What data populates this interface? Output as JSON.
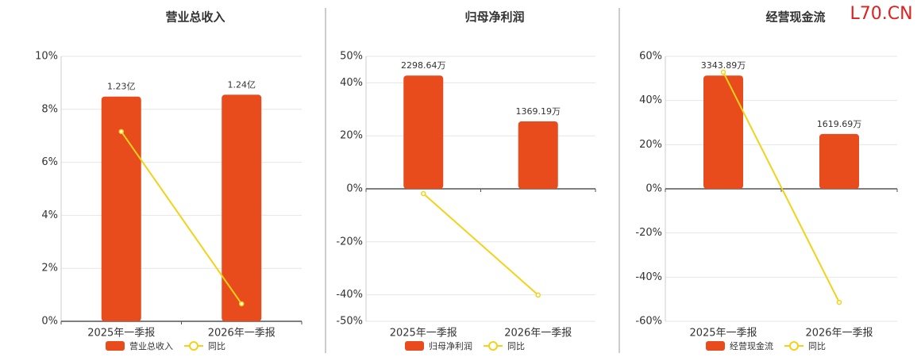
{
  "watermark": "L70.CN",
  "chart_data": [
    {
      "type": "bar",
      "title": "营业总收入",
      "categories": [
        "2025年一季报",
        "2026年一季报"
      ],
      "series": [
        {
          "name": "营业总收入",
          "type": "bar",
          "color": "#e84c1c",
          "values": [
            1.23,
            1.24
          ],
          "value_labels": [
            "1.23亿",
            "1.24亿"
          ]
        },
        {
          "name": "同比",
          "type": "line",
          "color": "#f2d21a",
          "values": [
            7.16,
            0.66
          ]
        }
      ],
      "ylim": [
        0,
        10
      ],
      "yticks": [
        {
          "value": 0,
          "label": "0%"
        },
        {
          "value": 2,
          "label": "2%"
        },
        {
          "value": 4,
          "label": "4%"
        },
        {
          "value": 6,
          "label": "6%"
        },
        {
          "value": 8,
          "label": "8%"
        },
        {
          "value": 10,
          "label": "10%"
        }
      ],
      "grid": true
    },
    {
      "type": "bar",
      "title": "归母净利润",
      "categories": [
        "2025年一季报",
        "2026年一季报"
      ],
      "series": [
        {
          "name": "归母净利润",
          "type": "bar",
          "color": "#e84c1c",
          "values": [
            2298.64,
            1369.19
          ],
          "value_labels": [
            "2298.64万",
            "1369.19万"
          ]
        },
        {
          "name": "同比",
          "type": "line",
          "color": "#f2d21a",
          "values": [
            -1.8,
            -40.1
          ]
        }
      ],
      "ylim": [
        -50,
        50
      ],
      "yticks": [
        {
          "value": -50,
          "label": "-50%"
        },
        {
          "value": -40,
          "label": "-40%"
        },
        {
          "value": -20,
          "label": "-20%"
        },
        {
          "value": 0,
          "label": "0%"
        },
        {
          "value": 20,
          "label": "20%"
        },
        {
          "value": 40,
          "label": "40%"
        },
        {
          "value": 50,
          "label": "50%"
        }
      ],
      "grid": true
    },
    {
      "type": "bar",
      "title": "经营现金流",
      "categories": [
        "2025年一季报",
        "2026年一季报"
      ],
      "series": [
        {
          "name": "经营现金流",
          "type": "bar",
          "color": "#e84c1c",
          "values": [
            3343.89,
            1619.69
          ],
          "value_labels": [
            "3343.89万",
            "1619.69万"
          ]
        },
        {
          "name": "同比",
          "type": "line",
          "color": "#f2d21a",
          "values": [
            52.8,
            -51.4
          ]
        }
      ],
      "ylim": [
        -60,
        60
      ],
      "yticks": [
        {
          "value": -60,
          "label": "-60%"
        },
        {
          "value": -40,
          "label": "-40%"
        },
        {
          "value": -20,
          "label": "-20%"
        },
        {
          "value": 0,
          "label": "0%"
        },
        {
          "value": 20,
          "label": "20%"
        },
        {
          "value": 40,
          "label": "40%"
        },
        {
          "value": 60,
          "label": "60%"
        }
      ],
      "grid": true
    }
  ]
}
